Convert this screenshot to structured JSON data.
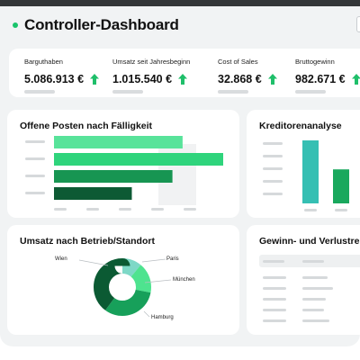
{
  "header": {
    "title": "Controller-Dashboard"
  },
  "kpis": [
    {
      "label": "Barguthaben",
      "value": "5.086.913 €"
    },
    {
      "label": "Umsatz seit Jahresbeginn",
      "value": "1.015.540 €"
    },
    {
      "label": "Cost of Sales",
      "value": "32.868 €"
    },
    {
      "label": "Bruttogewinn",
      "value": "982.671 €"
    }
  ],
  "colors": {
    "accent_green": "#19c46b",
    "arrow_green": "#1fbf6a",
    "frame_bg": "#f1f3f4",
    "placeholder_gray": "#d6d9db"
  },
  "offene_posten": {
    "title": "Offene Posten nach Fälligkeit",
    "chart_data": {
      "type": "bar",
      "orientation": "horizontal",
      "categories": [
        "",
        "",
        "",
        ""
      ],
      "values": [
        0.76,
        1.0,
        0.7,
        0.46
      ],
      "colors": [
        "#58e39a",
        "#2fd47c",
        "#179552",
        "#0d5a34"
      ]
    }
  },
  "kreditorenanalyse": {
    "title": "Kreditorenanalyse",
    "chart_data": {
      "type": "bar",
      "categories": [
        "",
        ""
      ],
      "values": [
        1.0,
        0.54
      ],
      "colors": [
        "#35bfb3",
        "#19a85d"
      ]
    }
  },
  "umsatz": {
    "title": "Umsatz nach Betrieb/Standort",
    "chart_data": {
      "type": "pie",
      "donut": true,
      "labels": [
        "Paris",
        "München",
        "Hamburg",
        "Wien"
      ],
      "values": [
        11,
        17,
        32,
        40
      ],
      "colors": [
        "#7ed8c7",
        "#4ee38f",
        "#17a05a",
        "#0b5a33"
      ]
    }
  },
  "gewinn": {
    "title": "Gewinn- und Verlustre"
  }
}
